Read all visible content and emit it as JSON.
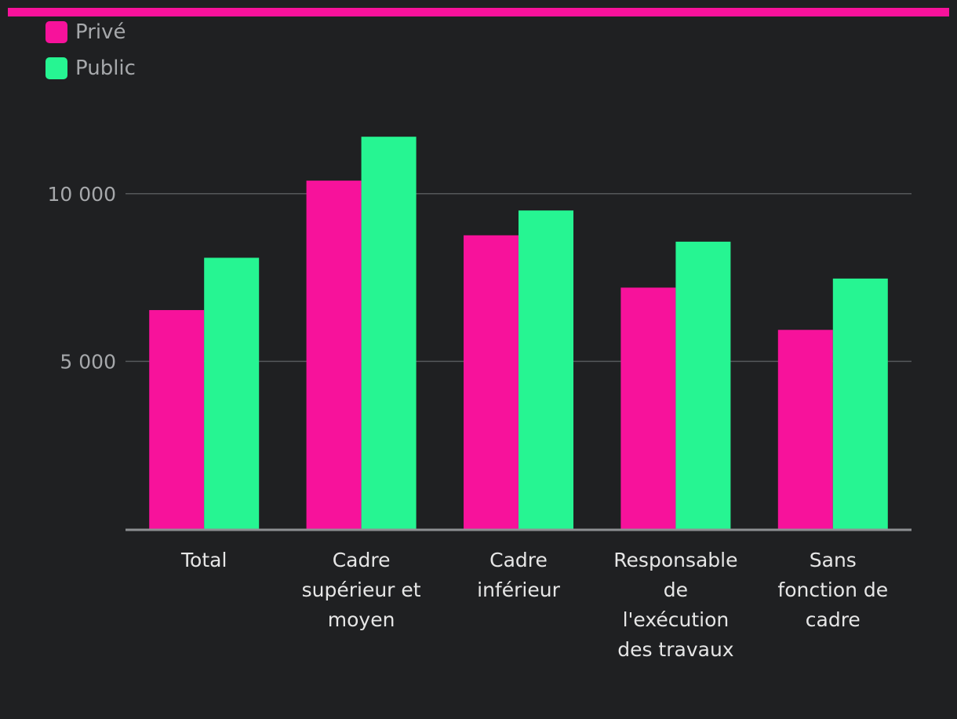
{
  "colors": {
    "background": "#1f2022",
    "accent_bar": "#f7129b",
    "prive": "#f7129b",
    "public": "#26f592",
    "grid": "#55585b",
    "axis": "#8d8f92"
  },
  "legend": [
    {
      "label": "Privé",
      "color": "#f7129b"
    },
    {
      "label": "Public",
      "color": "#26f592"
    }
  ],
  "chart_data": {
    "type": "bar",
    "categories": [
      [
        "Total"
      ],
      [
        "Cadre",
        "supérieur et",
        "moyen"
      ],
      [
        "Cadre",
        "inférieur"
      ],
      [
        "Responsable",
        "de",
        "l'exécution",
        "des travaux"
      ],
      [
        "Sans",
        "fonction de",
        "cadre"
      ]
    ],
    "series": [
      {
        "name": "Privé",
        "color": "#f7129b",
        "values": [
          6530,
          10390,
          8760,
          7200,
          5940
        ]
      },
      {
        "name": "Public",
        "color": "#26f592",
        "values": [
          8090,
          11700,
          9500,
          8570,
          7470
        ]
      }
    ],
    "yticks": [
      {
        "value": 5000,
        "label": "5 000"
      },
      {
        "value": 10000,
        "label": "10 000"
      }
    ],
    "ylim": [
      0,
      12500
    ],
    "grid": true,
    "legend_position": "top-left"
  }
}
